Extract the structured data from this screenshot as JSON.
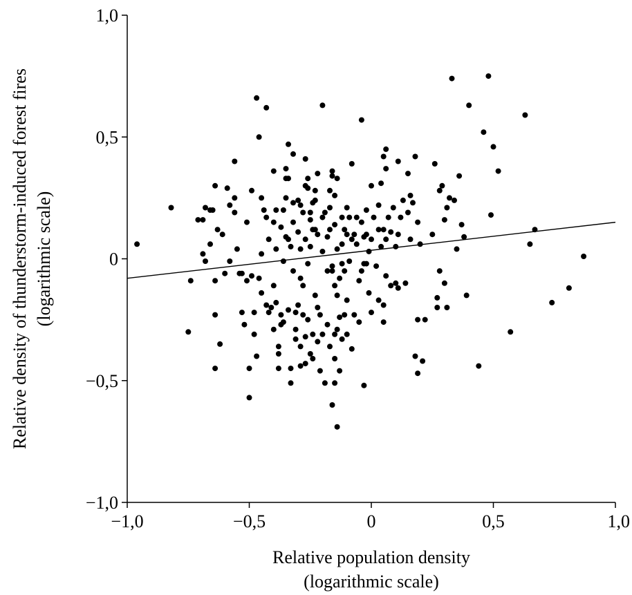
{
  "chart_data": {
    "type": "scatter",
    "title": "",
    "xlabel": "Relative population density",
    "xlabel_sub": "(logarithmic scale)",
    "ylabel": "Relative density of thunderstorm-induced forest fires",
    "ylabel_sub": "(logarithmic scale)",
    "xlim": [
      -1.0,
      1.0
    ],
    "ylim": [
      -1.0,
      1.0
    ],
    "x_ticks": [
      -1.0,
      -0.5,
      0,
      0.5,
      1.0
    ],
    "x_tick_labels": [
      "−1,0",
      "−0,5",
      "0",
      "0,5",
      "1,0"
    ],
    "y_ticks": [
      -1.0,
      -0.5,
      0,
      0.5,
      1.0
    ],
    "y_tick_labels": [
      "−1,0",
      "−0,5",
      "0",
      "0,5",
      "1,0"
    ],
    "grid": false,
    "legend": "none",
    "marker_color": "#000000",
    "trend_line": {
      "x": [
        -1.0,
        1.0
      ],
      "y": [
        -0.08,
        0.15
      ],
      "color": "#000000"
    },
    "points": [
      [
        -0.96,
        0.06
      ],
      [
        -0.82,
        0.21
      ],
      [
        -0.75,
        -0.3
      ],
      [
        -0.74,
        -0.09
      ],
      [
        -0.71,
        0.16
      ],
      [
        -0.69,
        0.16
      ],
      [
        -0.69,
        0.02
      ],
      [
        -0.68,
        -0.01
      ],
      [
        -0.68,
        0.21
      ],
      [
        -0.66,
        0.2
      ],
      [
        -0.66,
        0.06
      ],
      [
        -0.65,
        0.2
      ],
      [
        -0.64,
        -0.09
      ],
      [
        -0.64,
        -0.45
      ],
      [
        -0.64,
        -0.23
      ],
      [
        -0.64,
        0.3
      ],
      [
        -0.63,
        0.12
      ],
      [
        -0.62,
        -0.35
      ],
      [
        -0.61,
        0.1
      ],
      [
        -0.6,
        -0.06
      ],
      [
        -0.59,
        0.29
      ],
      [
        -0.58,
        0.22
      ],
      [
        -0.58,
        -0.01
      ],
      [
        -0.56,
        0.25
      ],
      [
        -0.56,
        0.4
      ],
      [
        -0.56,
        0.19
      ],
      [
        -0.55,
        0.04
      ],
      [
        -0.54,
        -0.06
      ],
      [
        -0.53,
        -0.22
      ],
      [
        -0.53,
        -0.06
      ],
      [
        -0.52,
        -0.27
      ],
      [
        -0.51,
        0.15
      ],
      [
        -0.51,
        -0.09
      ],
      [
        -0.5,
        -0.57
      ],
      [
        -0.5,
        -0.45
      ],
      [
        -0.49,
        -0.07
      ],
      [
        -0.49,
        0.28
      ],
      [
        -0.48,
        -0.22
      ],
      [
        -0.48,
        -0.31
      ],
      [
        -0.47,
        -0.4
      ],
      [
        -0.47,
        0.66
      ],
      [
        -0.46,
        0.5
      ],
      [
        -0.46,
        -0.08
      ],
      [
        -0.45,
        0.25
      ],
      [
        -0.45,
        -0.14
      ],
      [
        -0.45,
        0.02
      ],
      [
        -0.44,
        0.2
      ],
      [
        -0.43,
        0.62
      ],
      [
        -0.43,
        -0.19
      ],
      [
        -0.43,
        0.17
      ],
      [
        -0.42,
        -0.22
      ],
      [
        -0.42,
        0.08
      ],
      [
        -0.41,
        -0.2
      ],
      [
        -0.4,
        0.15
      ],
      [
        -0.4,
        -0.29
      ],
      [
        -0.4,
        0.36
      ],
      [
        -0.4,
        -0.11
      ],
      [
        -0.39,
        -0.18
      ],
      [
        -0.39,
        0.2
      ],
      [
        -0.39,
        0.04
      ],
      [
        -0.38,
        -0.45
      ],
      [
        -0.38,
        -0.39
      ],
      [
        -0.38,
        -0.36
      ],
      [
        -0.37,
        0.13
      ],
      [
        -0.37,
        -0.23
      ],
      [
        -0.37,
        -0.27
      ],
      [
        -0.36,
        -0.26
      ],
      [
        -0.36,
        -0.01
      ],
      [
        -0.36,
        0.2
      ],
      [
        -0.35,
        0.37
      ],
      [
        -0.35,
        0.33
      ],
      [
        -0.35,
        0.25
      ],
      [
        -0.35,
        0.09
      ],
      [
        -0.34,
        0.47
      ],
      [
        -0.34,
        0.33
      ],
      [
        -0.34,
        0.08
      ],
      [
        -0.34,
        -0.21
      ],
      [
        -0.33,
        0.05
      ],
      [
        -0.33,
        -0.45
      ],
      [
        -0.33,
        -0.51
      ],
      [
        -0.32,
        0.43
      ],
      [
        -0.32,
        0.23
      ],
      [
        -0.32,
        0.15
      ],
      [
        -0.32,
        -0.05
      ],
      [
        -0.31,
        -0.22
      ],
      [
        -0.31,
        -0.29
      ],
      [
        -0.31,
        -0.33
      ],
      [
        -0.3,
        -0.19
      ],
      [
        -0.3,
        0.11
      ],
      [
        -0.3,
        0.24
      ],
      [
        -0.29,
        0.22
      ],
      [
        -0.29,
        0.04
      ],
      [
        -0.29,
        -0.08
      ],
      [
        -0.29,
        -0.36
      ],
      [
        -0.29,
        -0.44
      ],
      [
        -0.28,
        -0.23
      ],
      [
        -0.28,
        0.19
      ],
      [
        -0.28,
        -0.11
      ],
      [
        -0.27,
        0.41
      ],
      [
        -0.27,
        -0.43
      ],
      [
        -0.27,
        -0.32
      ],
      [
        -0.27,
        0.08
      ],
      [
        -0.27,
        0.3
      ],
      [
        -0.26,
        0.33
      ],
      [
        -0.26,
        0.29
      ],
      [
        -0.26,
        -0.02
      ],
      [
        -0.26,
        -0.25
      ],
      [
        -0.25,
        0.19
      ],
      [
        -0.25,
        0.16
      ],
      [
        -0.25,
        -0.39
      ],
      [
        -0.25,
        0.05
      ],
      [
        -0.24,
        0.23
      ],
      [
        -0.24,
        -0.31
      ],
      [
        -0.24,
        -0.41
      ],
      [
        -0.24,
        0.12
      ],
      [
        -0.23,
        0.28
      ],
      [
        -0.23,
        0.24
      ],
      [
        -0.23,
        0.12
      ],
      [
        -0.23,
        -0.15
      ],
      [
        -0.22,
        0.35
      ],
      [
        -0.22,
        0.1
      ],
      [
        -0.22,
        -0.2
      ],
      [
        -0.22,
        -0.34
      ],
      [
        -0.21,
        -0.23
      ],
      [
        -0.21,
        -0.46
      ],
      [
        -0.2,
        0.63
      ],
      [
        -0.2,
        0.17
      ],
      [
        -0.2,
        0.03
      ],
      [
        -0.2,
        -0.31
      ],
      [
        -0.19,
        -0.51
      ],
      [
        -0.19,
        0.19
      ],
      [
        -0.18,
        -0.05
      ],
      [
        -0.18,
        0.09
      ],
      [
        -0.18,
        -0.27
      ],
      [
        -0.17,
        0.28
      ],
      [
        -0.17,
        0.21
      ],
      [
        -0.17,
        0.12
      ],
      [
        -0.17,
        -0.36
      ],
      [
        -0.16,
        -0.6
      ],
      [
        -0.16,
        0.36
      ],
      [
        -0.16,
        0.34
      ],
      [
        -0.16,
        -0.05
      ],
      [
        -0.16,
        -0.03
      ],
      [
        -0.15,
        0.26
      ],
      [
        -0.15,
        0.14
      ],
      [
        -0.15,
        -0.11
      ],
      [
        -0.15,
        -0.31
      ],
      [
        -0.15,
        -0.41
      ],
      [
        -0.15,
        -0.51
      ],
      [
        -0.14,
        -0.69
      ],
      [
        -0.14,
        0.33
      ],
      [
        -0.14,
        0.04
      ],
      [
        -0.14,
        -0.15
      ],
      [
        -0.14,
        -0.29
      ],
      [
        -0.13,
        -0.08
      ],
      [
        -0.13,
        -0.24
      ],
      [
        -0.13,
        -0.46
      ],
      [
        -0.12,
        0.17
      ],
      [
        -0.12,
        0.06
      ],
      [
        -0.12,
        -0.02
      ],
      [
        -0.12,
        -0.33
      ],
      [
        -0.11,
        0.12
      ],
      [
        -0.11,
        -0.05
      ],
      [
        -0.11,
        -0.23
      ],
      [
        -0.1,
        0.21
      ],
      [
        -0.1,
        0.1
      ],
      [
        -0.1,
        -0.31
      ],
      [
        -0.1,
        -0.17
      ],
      [
        -0.09,
        0.17
      ],
      [
        -0.09,
        -0.01
      ],
      [
        -0.08,
        0.39
      ],
      [
        -0.08,
        0.08
      ],
      [
        -0.08,
        -0.37
      ],
      [
        -0.07,
        0.1
      ],
      [
        -0.07,
        -0.23
      ],
      [
        -0.06,
        0.17
      ],
      [
        -0.06,
        0.06
      ],
      [
        -0.05,
        -0.09
      ],
      [
        -0.05,
        -0.26
      ],
      [
        -0.04,
        0.57
      ],
      [
        -0.04,
        0.15
      ],
      [
        -0.04,
        -0.05
      ],
      [
        -0.03,
        -0.52
      ],
      [
        -0.03,
        0.09
      ],
      [
        -0.03,
        -0.02
      ],
      [
        -0.02,
        0.2
      ],
      [
        -0.02,
        0.1
      ],
      [
        -0.02,
        -0.02
      ],
      [
        -0.01,
        -0.14
      ],
      [
        -0.01,
        0.03
      ],
      [
        0.0,
        0.3
      ],
      [
        0.0,
        0.08
      ],
      [
        0.0,
        -0.22
      ],
      [
        0.01,
        0.17
      ],
      [
        0.02,
        -0.03
      ],
      [
        0.03,
        0.22
      ],
      [
        0.03,
        0.12
      ],
      [
        0.03,
        -0.17
      ],
      [
        0.04,
        0.31
      ],
      [
        0.04,
        0.05
      ],
      [
        0.05,
        0.42
      ],
      [
        0.05,
        0.12
      ],
      [
        0.05,
        -0.19
      ],
      [
        0.05,
        -0.26
      ],
      [
        0.06,
        0.45
      ],
      [
        0.06,
        0.37
      ],
      [
        0.06,
        0.08
      ],
      [
        0.06,
        -0.07
      ],
      [
        0.07,
        0.17
      ],
      [
        0.08,
        0.11
      ],
      [
        0.08,
        -0.11
      ],
      [
        0.09,
        0.21
      ],
      [
        0.1,
        0.05
      ],
      [
        0.1,
        -0.1
      ],
      [
        0.11,
        0.4
      ],
      [
        0.11,
        0.1
      ],
      [
        0.11,
        -0.12
      ],
      [
        0.12,
        0.17
      ],
      [
        0.13,
        0.24
      ],
      [
        0.14,
        -0.1
      ],
      [
        0.15,
        0.35
      ],
      [
        0.15,
        0.19
      ],
      [
        0.16,
        0.26
      ],
      [
        0.16,
        0.08
      ],
      [
        0.17,
        0.23
      ],
      [
        0.18,
        -0.4
      ],
      [
        0.18,
        0.42
      ],
      [
        0.19,
        0.15
      ],
      [
        0.19,
        -0.25
      ],
      [
        0.19,
        -0.47
      ],
      [
        0.2,
        0.06
      ],
      [
        0.21,
        -0.42
      ],
      [
        0.22,
        -0.25
      ],
      [
        0.25,
        0.1
      ],
      [
        0.26,
        0.39
      ],
      [
        0.27,
        -0.16
      ],
      [
        0.27,
        -0.2
      ],
      [
        0.28,
        0.28
      ],
      [
        0.28,
        -0.05
      ],
      [
        0.29,
        0.3
      ],
      [
        0.3,
        0.16
      ],
      [
        0.3,
        -0.1
      ],
      [
        0.31,
        0.21
      ],
      [
        0.31,
        -0.2
      ],
      [
        0.32,
        0.25
      ],
      [
        0.33,
        0.74
      ],
      [
        0.34,
        0.24
      ],
      [
        0.35,
        0.04
      ],
      [
        0.36,
        0.34
      ],
      [
        0.37,
        0.14
      ],
      [
        0.38,
        0.09
      ],
      [
        0.39,
        -0.15
      ],
      [
        0.4,
        0.63
      ],
      [
        0.44,
        -0.44
      ],
      [
        0.46,
        0.52
      ],
      [
        0.48,
        0.75
      ],
      [
        0.49,
        0.18
      ],
      [
        0.5,
        0.46
      ],
      [
        0.52,
        0.36
      ],
      [
        0.57,
        -0.3
      ],
      [
        0.63,
        0.59
      ],
      [
        0.65,
        0.06
      ],
      [
        0.67,
        0.12
      ],
      [
        0.74,
        -0.18
      ],
      [
        0.81,
        -0.12
      ],
      [
        0.87,
        0.01
      ]
    ]
  }
}
